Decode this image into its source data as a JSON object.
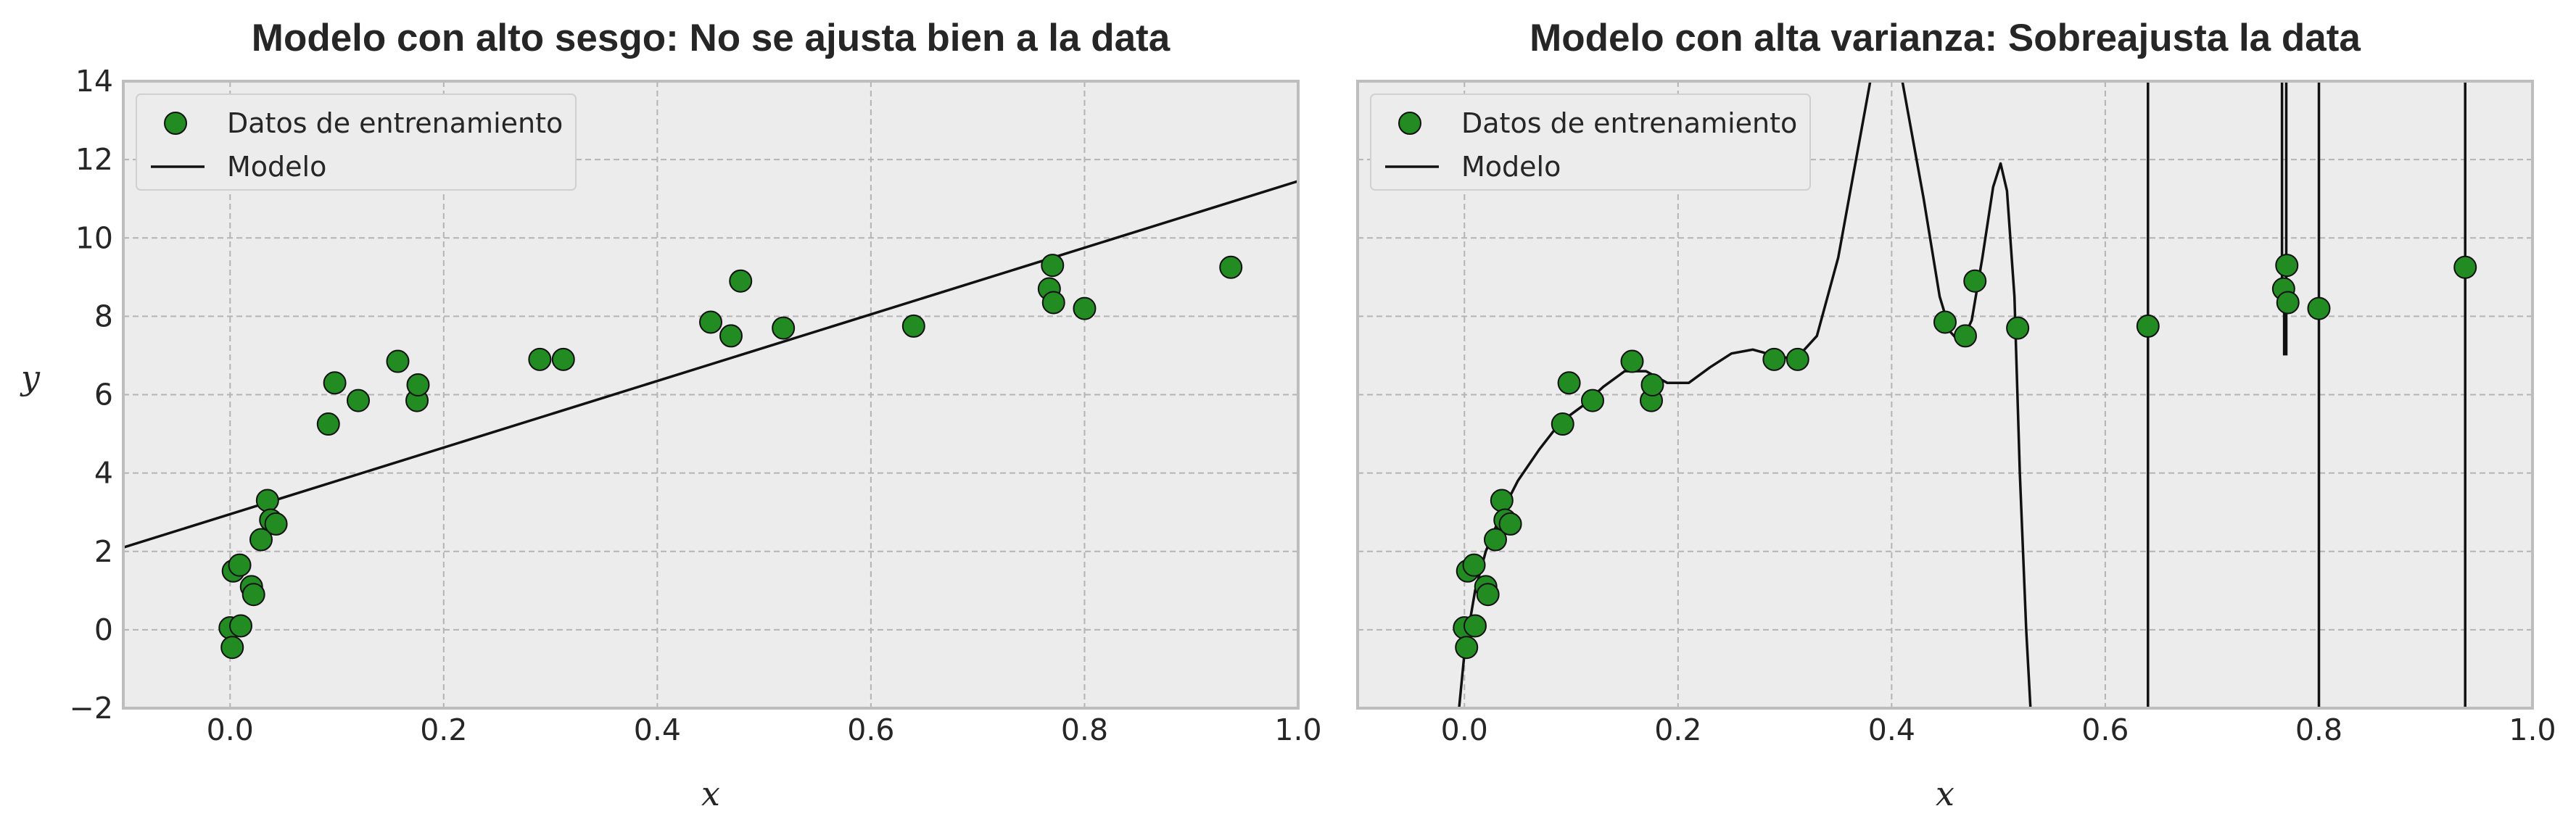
{
  "chart_data": [
    {
      "type": "scatter",
      "title": "Modelo con alto sesgo: No se ajusta bien a la data",
      "xlabel": "x",
      "ylabel": "y",
      "xlim": [
        -0.1,
        1.0
      ],
      "ylim": [
        -2,
        14
      ],
      "xticks": [
        "0.0",
        "0.2",
        "0.4",
        "0.6",
        "0.8",
        "1.0"
      ],
      "yticks": [
        "−2",
        "0",
        "2",
        "4",
        "6",
        "8",
        "10",
        "12",
        "14"
      ],
      "grid": true,
      "legend_position": "top-left",
      "legend": [
        "Datos de entrenamiento",
        "Modelo"
      ],
      "series": [
        {
          "name": "Datos de entrenamiento",
          "kind": "scatter",
          "color": "#228b22",
          "points": [
            [
              0.0,
              0.05
            ],
            [
              0.002,
              -0.45
            ],
            [
              0.003,
              1.5
            ],
            [
              0.009,
              1.65
            ],
            [
              0.01,
              0.1
            ],
            [
              0.02,
              1.1
            ],
            [
              0.022,
              0.9
            ],
            [
              0.029,
              2.3
            ],
            [
              0.035,
              3.3
            ],
            [
              0.038,
              2.8
            ],
            [
              0.043,
              2.7
            ],
            [
              0.092,
              5.25
            ],
            [
              0.098,
              6.3
            ],
            [
              0.12,
              5.85
            ],
            [
              0.157,
              6.85
            ],
            [
              0.175,
              5.85
            ],
            [
              0.176,
              6.25
            ],
            [
              0.29,
              6.9
            ],
            [
              0.312,
              6.9
            ],
            [
              0.45,
              7.85
            ],
            [
              0.469,
              7.5
            ],
            [
              0.478,
              8.9
            ],
            [
              0.518,
              7.7
            ],
            [
              0.64,
              7.75
            ],
            [
              0.767,
              8.7
            ],
            [
              0.77,
              9.3
            ],
            [
              0.771,
              8.35
            ],
            [
              0.8,
              8.2
            ],
            [
              0.937,
              9.25
            ]
          ]
        },
        {
          "name": "Modelo",
          "kind": "line",
          "color": "#111111",
          "model": "linear",
          "coefficients": [
            2.95,
            8.5
          ]
        }
      ]
    },
    {
      "type": "scatter",
      "title": "Modelo con alta varianza: Sobreajusta la data",
      "xlabel": "x",
      "xlim": [
        -0.1,
        1.0
      ],
      "ylim": [
        -2,
        14
      ],
      "xticks": [
        "0.0",
        "0.2",
        "0.4",
        "0.6",
        "0.8",
        "1.0"
      ],
      "grid": true,
      "legend_position": "top-left",
      "legend": [
        "Datos de entrenamiento",
        "Modelo"
      ],
      "series": [
        {
          "name": "Datos de entrenamiento",
          "kind": "scatter",
          "color": "#228b22",
          "points": "same_as_left"
        },
        {
          "name": "Modelo",
          "kind": "line",
          "color": "#111111",
          "model": "overfit",
          "curve": [
            [
              -0.005,
              -2
            ],
            [
              0.0,
              -0.6
            ],
            [
              0.01,
              1.0
            ],
            [
              0.02,
              2.0
            ],
            [
              0.035,
              3.0
            ],
            [
              0.05,
              3.8
            ],
            [
              0.07,
              4.6
            ],
            [
              0.09,
              5.3
            ],
            [
              0.11,
              5.7
            ],
            [
              0.13,
              6.2
            ],
            [
              0.15,
              6.6
            ],
            [
              0.17,
              6.6
            ],
            [
              0.19,
              6.3
            ],
            [
              0.21,
              6.3
            ],
            [
              0.23,
              6.7
            ],
            [
              0.25,
              7.05
            ],
            [
              0.27,
              7.15
            ],
            [
              0.29,
              7.0
            ],
            [
              0.31,
              6.9
            ],
            [
              0.33,
              7.5
            ],
            [
              0.35,
              9.5
            ],
            [
              0.37,
              12.5
            ],
            [
              0.38,
              14
            ],
            [
              0.41,
              14
            ],
            [
              0.43,
              11.0
            ],
            [
              0.445,
              8.5
            ],
            [
              0.455,
              7.6
            ],
            [
              0.465,
              7.3
            ],
            [
              0.475,
              7.9
            ],
            [
              0.485,
              9.5
            ],
            [
              0.495,
              11.3
            ],
            [
              0.502,
              11.9
            ],
            [
              0.508,
              11.2
            ],
            [
              0.515,
              8.5
            ],
            [
              0.52,
              4.0
            ],
            [
              0.526,
              0
            ],
            [
              0.53,
              -2
            ]
          ],
          "spikes": [
            {
              "x": 0.64,
              "from": -2,
              "to": 14
            },
            {
              "x": 0.7655,
              "from": 14,
              "to": 8.6
            },
            {
              "x": 0.7675,
              "from": 8.6,
              "to": 7.0
            },
            {
              "x": 0.7695,
              "from": 7.0,
              "to": 14
            },
            {
              "x": 0.7715,
              "from": 14,
              "to": 14
            },
            {
              "x": 0.8,
              "from": -2,
              "to": 14
            },
            {
              "x": 0.937,
              "from": -2,
              "to": 14
            }
          ]
        }
      ]
    }
  ]
}
